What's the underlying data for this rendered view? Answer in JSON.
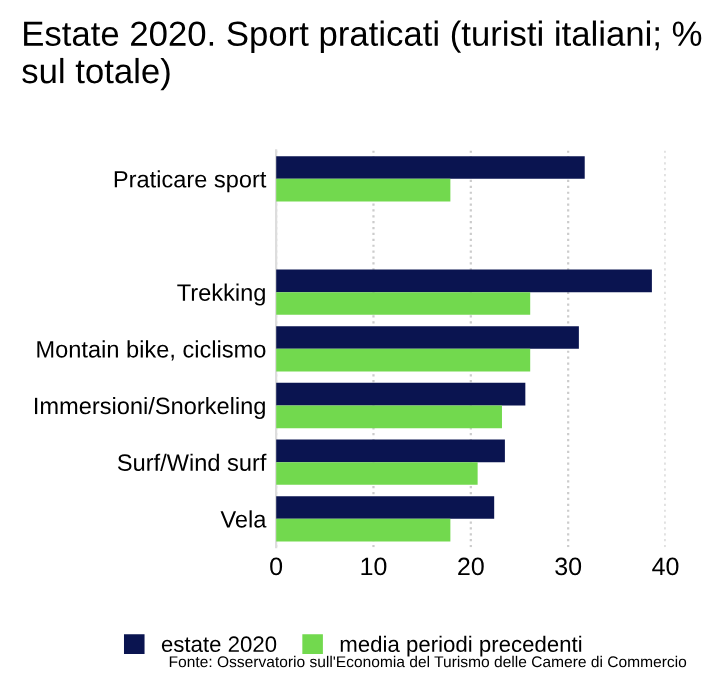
{
  "chart_data": {
    "type": "bar",
    "orientation": "horizontal",
    "title": "Estate 2020. Sport praticati (turisti italiani; % sul totale)",
    "categories": [
      "Praticare sport",
      null,
      "Trekking",
      "Montain bike, ciclismo",
      "Immersioni/Snorkeling",
      "Surf/Wind surf",
      "Vela"
    ],
    "series": [
      {
        "name": "estate 2020",
        "color": "#0a1450",
        "values": [
          31.7,
          null,
          38.6,
          31.1,
          25.6,
          23.5,
          22.4
        ]
      },
      {
        "name": "media periodi precedenti",
        "color": "#72d94e",
        "values": [
          17.9,
          null,
          26.1,
          26.1,
          23.2,
          20.7,
          17.9
        ]
      }
    ],
    "xlim": [
      0,
      40
    ],
    "xticks": [
      0,
      10,
      20,
      30,
      40
    ],
    "grid": "x",
    "legend": "bottom",
    "annotations": [
      "Fonte: Osservatorio sull'Economia del Turismo delle Camere di Commercio"
    ]
  }
}
